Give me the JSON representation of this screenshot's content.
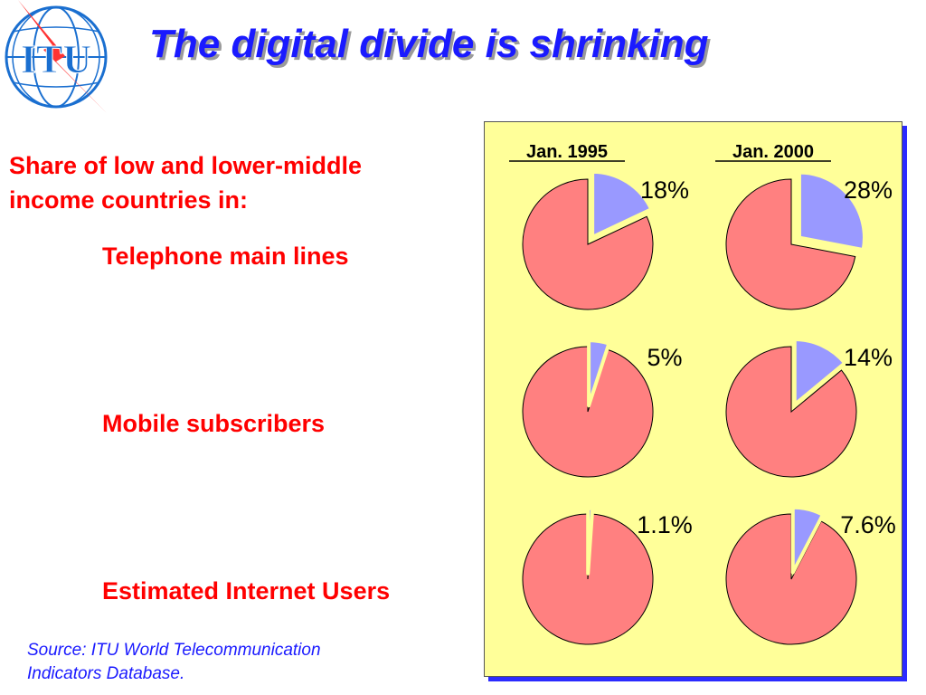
{
  "logo": {
    "text": "ITU",
    "colors": {
      "globe": "#1a6fd0",
      "lightning": "#ff3333"
    }
  },
  "title": "The digital divide is shrinking",
  "intro": [
    "Share of low and lower-middle",
    "income countries in:"
  ],
  "rows": [
    "Telephone main lines",
    "Mobile subscribers",
    "Estimated Internet Users"
  ],
  "source": [
    "Source:  ITU World Telecommunication",
    "Indicators Database."
  ],
  "colors": {
    "title": "#1a1aff",
    "labels": "#ff0000",
    "panel": "#ffff99",
    "panel_shadow": "#2b2bff",
    "share": "#9999ff",
    "rest": "#ff8080",
    "border": "#ffff99"
  },
  "chart_data": {
    "type": "pie",
    "columns": [
      "Jan. 1995",
      "Jan. 2000"
    ],
    "rows": [
      "Telephone main lines",
      "Mobile subscribers",
      "Estimated Internet Users"
    ],
    "values": [
      [
        18,
        28
      ],
      [
        5,
        14
      ],
      [
        1.1,
        7.6
      ]
    ],
    "labels": [
      [
        "18%",
        "28%"
      ],
      [
        "5%",
        "14%"
      ],
      [
        "1.1%",
        "7.6%"
      ]
    ]
  }
}
